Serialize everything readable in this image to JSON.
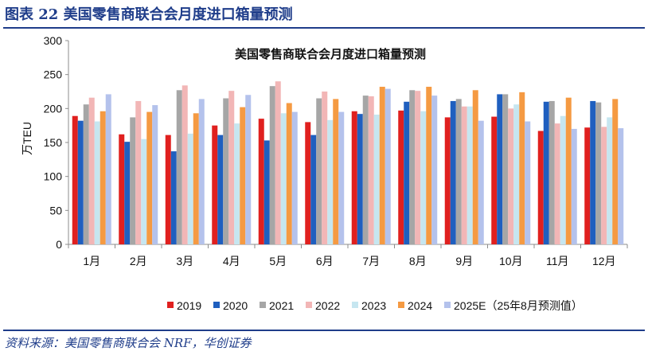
{
  "figure": {
    "title": "图表 22 美国零售商联合会月度进口箱量预测",
    "source": "资料来源：美国零售商联合会 NRF，华创证券"
  },
  "chart_data": {
    "type": "bar",
    "title": "美国零售商联合会月度进口箱量预测",
    "xlabel": "",
    "ylabel": "万TEU",
    "ylim": [
      0,
      300
    ],
    "yticks": [
      0,
      50,
      100,
      150,
      200,
      250,
      300
    ],
    "grid": false,
    "legend_position": "bottom",
    "categories": [
      "1月",
      "2月",
      "3月",
      "4月",
      "5月",
      "6月",
      "7月",
      "8月",
      "9月",
      "10月",
      "11月",
      "12月"
    ],
    "series": [
      {
        "name": "2019",
        "color": "#e0201f",
        "values": [
          189,
          162,
          161,
          175,
          185,
          180,
          196,
          197,
          187,
          188,
          167,
          172
        ]
      },
      {
        "name": "2020",
        "color": "#1f5fbf",
        "values": [
          182,
          151,
          137,
          161,
          153,
          161,
          192,
          210,
          211,
          221,
          210,
          211
        ]
      },
      {
        "name": "2021",
        "color": "#a6a6a6",
        "values": [
          206,
          187,
          227,
          215,
          233,
          215,
          219,
          227,
          214,
          221,
          211,
          209
        ]
      },
      {
        "name": "2022",
        "color": "#f2b6b6",
        "values": [
          216,
          211,
          234,
          226,
          240,
          225,
          218,
          226,
          203,
          200,
          178,
          173
        ]
      },
      {
        "name": "2023",
        "color": "#c6e6f0",
        "values": [
          181,
          155,
          163,
          178,
          193,
          183,
          191,
          196,
          203,
          206,
          189,
          187
        ]
      },
      {
        "name": "2024",
        "color": "#f59a42",
        "values": [
          196,
          195,
          193,
          202,
          208,
          214,
          232,
          232,
          227,
          224,
          216,
          214
        ]
      },
      {
        "name": "2025E（25年8月预测值）",
        "color": "#b4c2ec",
        "values": [
          221,
          205,
          214,
          220,
          195,
          195,
          229,
          219,
          182,
          181,
          170,
          171
        ]
      }
    ]
  }
}
